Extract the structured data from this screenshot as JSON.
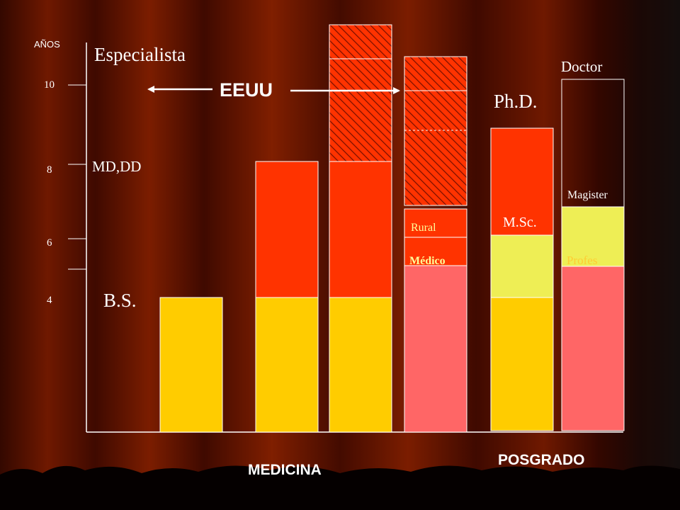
{
  "axis": {
    "title": "AÑOS",
    "ticks": [
      "10",
      "8",
      "6",
      "4"
    ]
  },
  "labels": {
    "especialista": "Especialista",
    "md_dd": "MD,DD",
    "bs": "B.S.",
    "eeuu": "EEUU",
    "phd": "Ph.D.",
    "doctor": "Doctor",
    "magister": "Magister",
    "msc": "M.Sc.",
    "rural": "Rural",
    "medico": "Médico",
    "profes": "Profes"
  },
  "footer": {
    "medicina": "MEDICINA",
    "posgrado": "POSGRADO"
  },
  "colors": {
    "yellow": "#ffcc00",
    "red_orange": "#ff3300",
    "salmon": "#ff6666",
    "light_yellow": "#eeee55",
    "white": "#ffffff"
  }
}
